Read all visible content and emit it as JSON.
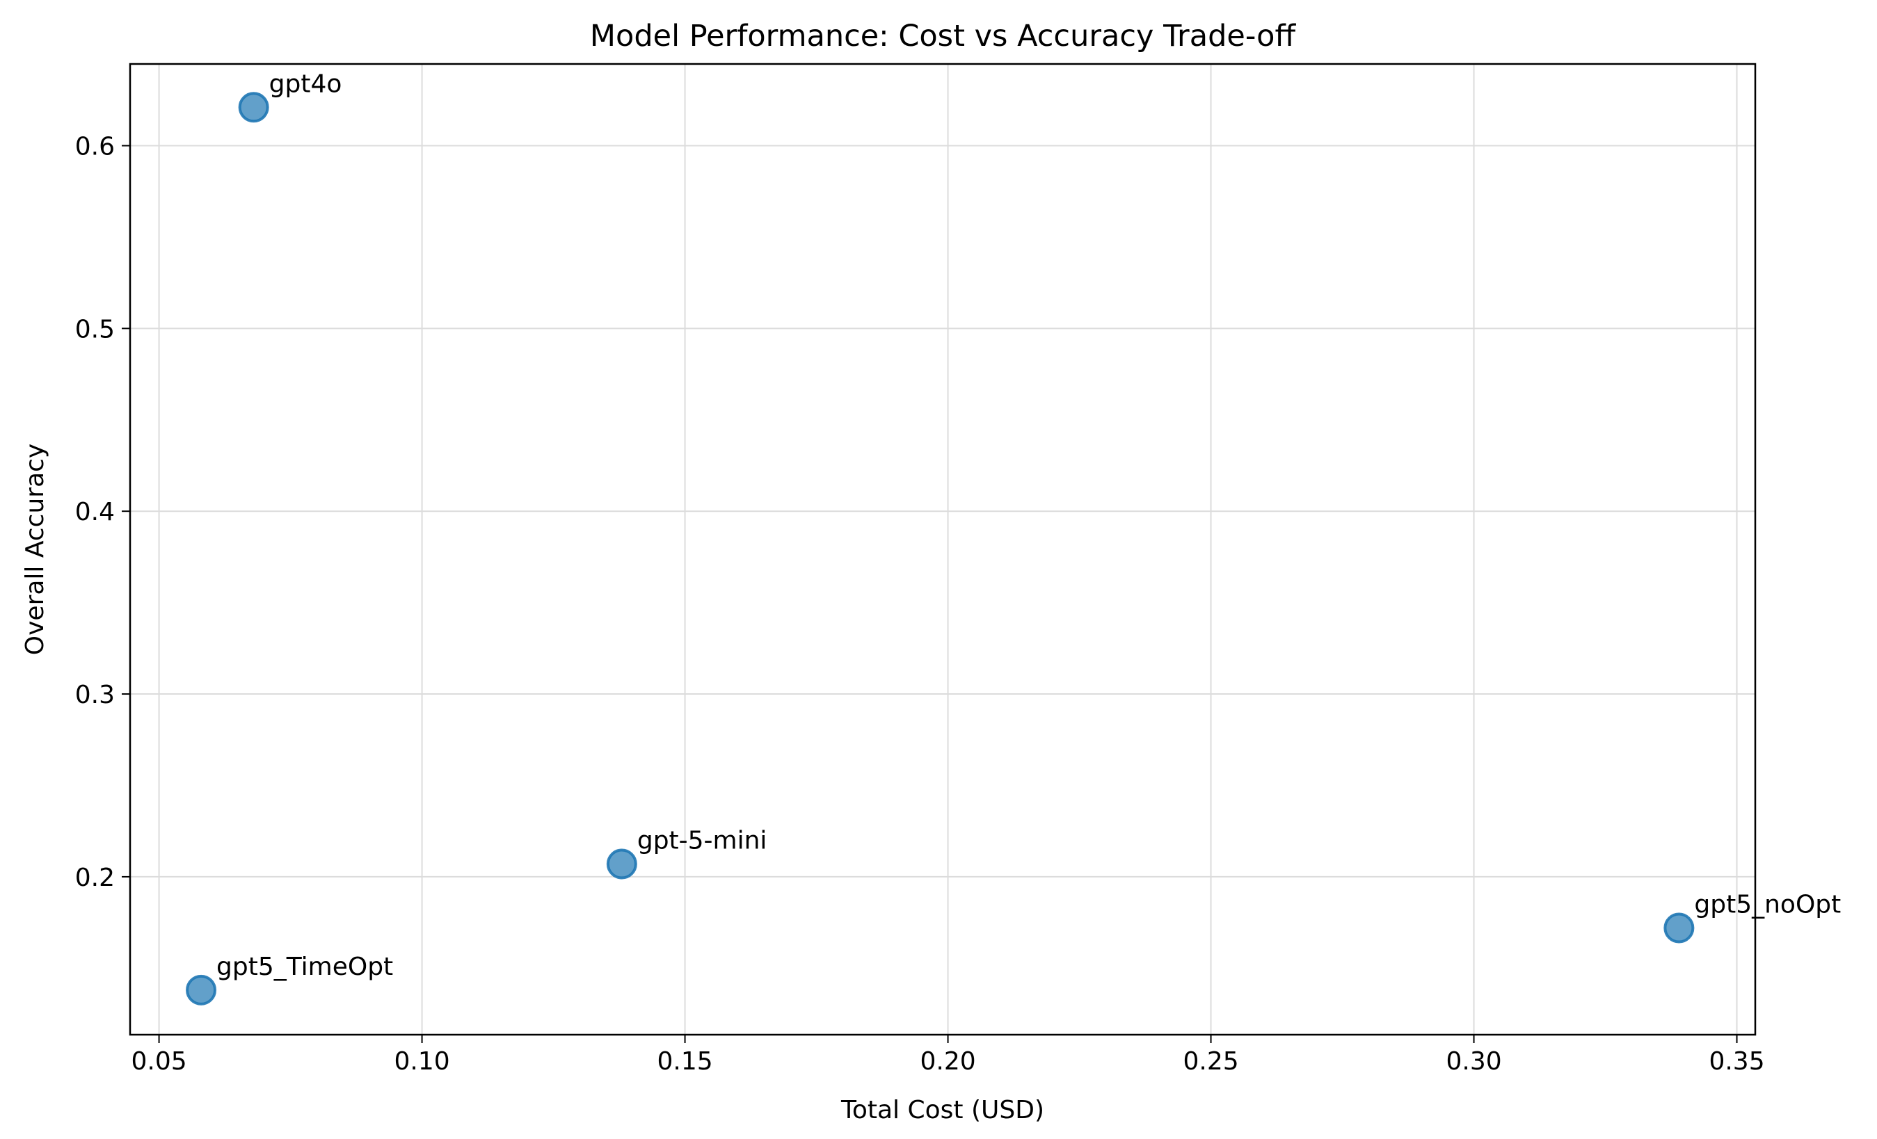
{
  "chart_data": {
    "type": "scatter",
    "title": "Model Performance: Cost vs Accuracy Trade-off",
    "xlabel": "Total Cost (USD)",
    "ylabel": "Overall Accuracy",
    "xlim": [
      0.0445,
      0.3535
    ],
    "ylim": [
      0.1136,
      0.6447
    ],
    "xticks": [
      0.05,
      0.1,
      0.15,
      0.2,
      0.25,
      0.3,
      0.35
    ],
    "xtick_labels": [
      "0.05",
      "0.10",
      "0.15",
      "0.20",
      "0.25",
      "0.30",
      "0.35"
    ],
    "yticks": [
      0.2,
      0.3,
      0.4,
      0.5,
      0.6
    ],
    "ytick_labels": [
      "0.2",
      "0.3",
      "0.4",
      "0.5",
      "0.6"
    ],
    "grid": true,
    "marker_color": "#1f77b4",
    "marker_alpha": 0.7,
    "points": [
      {
        "label": "gpt4o",
        "x": 0.068,
        "y": 0.621
      },
      {
        "label": "gpt-5-mini",
        "x": 0.138,
        "y": 0.207
      },
      {
        "label": "gpt5_noOpt",
        "x": 0.339,
        "y": 0.172
      },
      {
        "label": "gpt5_TimeOpt",
        "x": 0.058,
        "y": 0.138
      }
    ]
  }
}
